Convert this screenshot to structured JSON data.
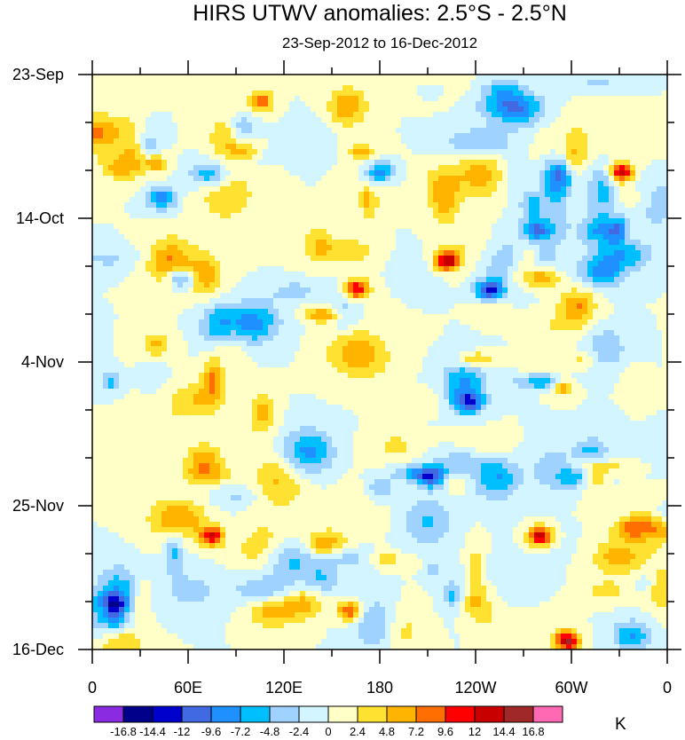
{
  "chart_data": {
    "type": "heatmap",
    "title": "HIRS UTWV anomalies: 2.5°S - 2.5°N",
    "subtitle": "23-Sep-2012 to 16-Dec-2012",
    "x_ticks": [
      "0",
      "60E",
      "120E",
      "180",
      "120W",
      "60W",
      "0"
    ],
    "x_range_deg": [
      0,
      360
    ],
    "y_ticks": [
      "23-Sep",
      "14-Oct",
      "4-Nov",
      "25-Nov",
      "16-Dec"
    ],
    "y_range_days": [
      0,
      84
    ],
    "colorbar": {
      "levels": [
        "-16.8",
        "-14.4",
        "-12",
        "-9.6",
        "-7.2",
        "-4.8",
        "-2.4",
        "0",
        "2.4",
        "4.8",
        "7.2",
        "9.6",
        "12",
        "14.4",
        "16.8"
      ],
      "colors": [
        "#8a2be2",
        "#00008b",
        "#0000cd",
        "#4169e1",
        "#1e90ff",
        "#00bfff",
        "#a0d2ff",
        "#d2f5ff",
        "#ffffc8",
        "#ffe132",
        "#ffb400",
        "#ff6e00",
        "#ff0000",
        "#c80000",
        "#a02828",
        "#ff69b4"
      ],
      "unit": "K"
    },
    "field_note": "Contour-filled anomaly field (mostly between -7.2 and 12 K), alternating warm and cold patches"
  }
}
